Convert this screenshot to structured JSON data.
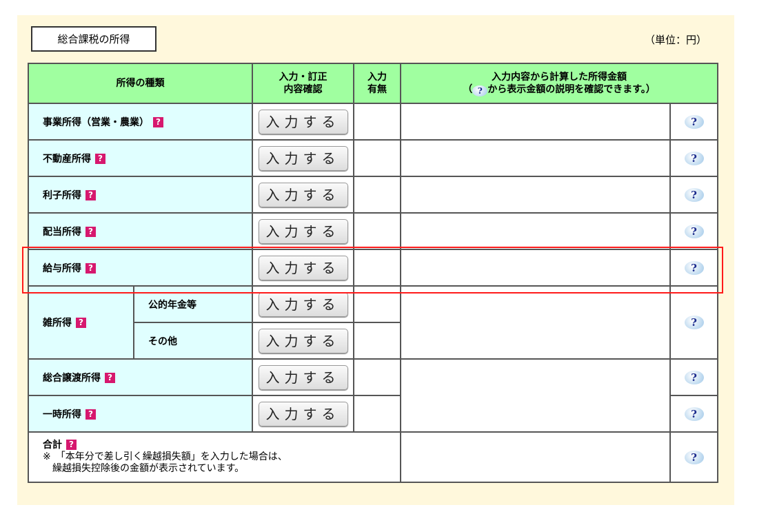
{
  "section_title": "総合課税の所得",
  "unit": "（単位：円）",
  "header": {
    "type": "所得の種類",
    "input_line1": "入力・訂正",
    "input_line2": "内容確認",
    "status_line1": "入力",
    "status_line2": "有無",
    "amount_line1": "入力内容から計算した所得金額",
    "amount_prefix": "（",
    "amount_suffix": "から表示金額の説明を確認できます。）"
  },
  "button_label": "入力する",
  "rows": [
    {
      "label": "事業所得（営業・農業）"
    },
    {
      "label": "不動産所得"
    },
    {
      "label": "利子所得"
    },
    {
      "label": "配当所得"
    },
    {
      "label": "給与所得"
    },
    {
      "label": "雑所得",
      "sub": [
        "公的年金等",
        "その他"
      ]
    },
    {
      "label": "総合譲渡所得"
    },
    {
      "label": "一時所得"
    }
  ],
  "total": {
    "label": "合計",
    "note_line1": "※　「本年分で差し引く繰越損失額」を入力した場合は、",
    "note_line2": "　繰越損失控除後の金額が表示されています。"
  },
  "icons": {
    "help_red": "question-square-icon",
    "help_blue": "question-bubble-icon"
  },
  "colors": {
    "header_bg": "#a0ffa0",
    "label_bg": "#e0ffff",
    "panel_bg": "#fff8dc",
    "highlight": "#ff1a1a"
  }
}
